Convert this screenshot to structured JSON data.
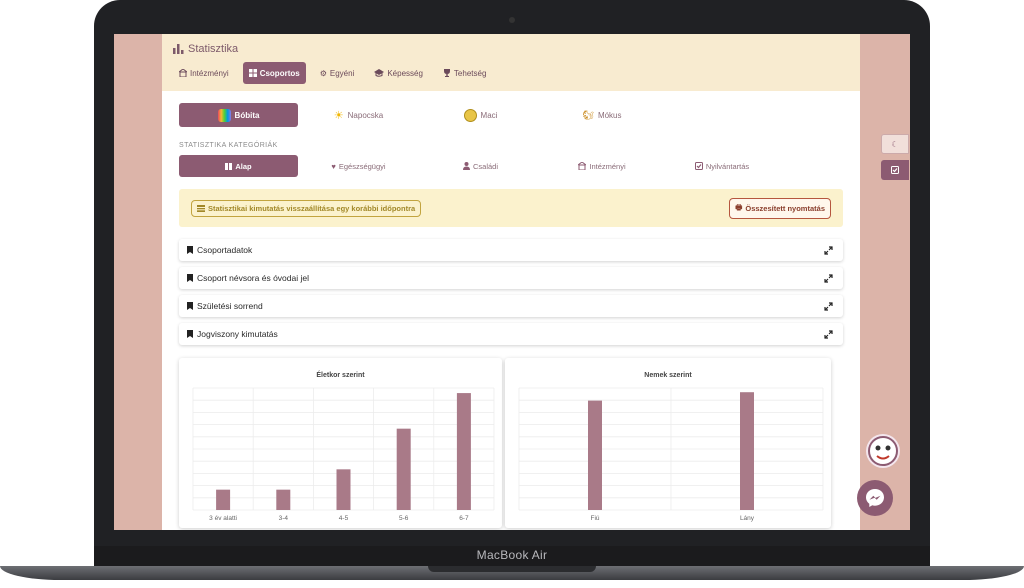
{
  "device": {
    "label": "MacBook Air"
  },
  "header": {
    "title": "Statisztika"
  },
  "tabs": [
    {
      "label": "Intézményi",
      "icon": "building-icon",
      "active": false
    },
    {
      "label": "Csoportos",
      "icon": "grid-icon",
      "active": true
    },
    {
      "label": "Egyéni",
      "icon": "gear-icon",
      "active": false
    },
    {
      "label": "Képesség",
      "icon": "graduation-cap-icon",
      "active": false
    },
    {
      "label": "Tehetség",
      "icon": "trophy-icon",
      "active": false
    }
  ],
  "groups": [
    {
      "label": "Bóbita",
      "icon": "bobita-logo-icon",
      "active": true
    },
    {
      "label": "Napocska",
      "icon": "sun-icon",
      "active": false
    },
    {
      "label": "Maci",
      "icon": "bear-icon",
      "active": false
    },
    {
      "label": "Mókus",
      "icon": "squirrel-icon",
      "active": false
    }
  ],
  "categories_label": "STATISZTIKA KATEGÓRIÁK",
  "categories": [
    {
      "label": "Alap",
      "icon": "table-icon",
      "active": true
    },
    {
      "label": "Egészségügyi",
      "icon": "heart-icon",
      "active": false
    },
    {
      "label": "Családi",
      "icon": "user-icon",
      "active": false
    },
    {
      "label": "Intézményi",
      "icon": "building-icon",
      "active": false
    },
    {
      "label": "Nyilvántartás",
      "icon": "check-square-icon",
      "active": false
    }
  ],
  "notice": {
    "restore_label": "Statisztikai kimutatás visszaállítása egy korábbi időpontra",
    "print_label": "Összesített nyomtatás"
  },
  "sections": [
    {
      "label": "Csoportadatok"
    },
    {
      "label": "Csoport névsora és óvodai jel"
    },
    {
      "label": "Születési sorrend"
    },
    {
      "label": "Jogviszony kimutatás"
    }
  ],
  "colors": {
    "accent": "#8c5b72",
    "bar": "#a97a88",
    "header_bg": "#f8ebd0",
    "screen_bg": "#dcb4a9",
    "notice_bg": "#fbf2cd"
  },
  "chart_data": [
    {
      "type": "bar",
      "title": "Életkor szerint",
      "categories": [
        "3 év alatti",
        "3-4",
        "4-5",
        "5-6",
        "6-7"
      ],
      "values": [
        2,
        2,
        4,
        8,
        11.5
      ],
      "ylim": [
        0,
        12
      ],
      "grid": true
    },
    {
      "type": "bar",
      "title": "Nemek szerint",
      "categories": [
        "Fiú",
        "Lány"
      ],
      "values": [
        13,
        14
      ],
      "ylim": [
        0,
        14.5
      ],
      "grid": true
    }
  ]
}
